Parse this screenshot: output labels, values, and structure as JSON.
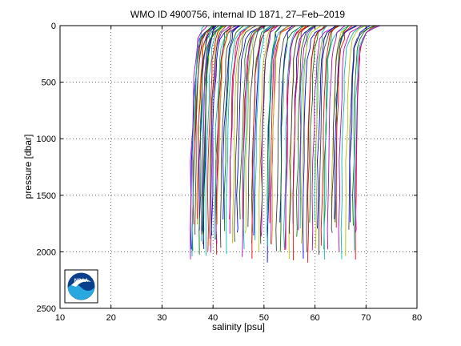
{
  "chart_data": {
    "type": "line",
    "title": "WMO ID 4900756, internal ID 1871, 27–Feb–2019",
    "xlabel": "salinity [psu]",
    "ylabel": "pressure [dbar]",
    "xlim": [
      10,
      80
    ],
    "ylim": [
      0,
      2500
    ],
    "y_reversed": true,
    "x_ticks": [
      10,
      20,
      30,
      40,
      50,
      60,
      70,
      80
    ],
    "y_ticks": [
      0,
      500,
      1000,
      1500,
      2000,
      2500
    ],
    "x_tick_labels": [
      "10",
      "20",
      "30",
      "40",
      "50",
      "60",
      "70",
      "80"
    ],
    "y_tick_labels": [
      "0",
      "500",
      "1000",
      "1500",
      "2000",
      "2500"
    ],
    "grid": true,
    "grid_style": "dotted",
    "legend": "none",
    "series_colors": [
      "#0000ff",
      "#008000",
      "#ff0000",
      "#00bfbf",
      "#bf00bf",
      "#bfbf00",
      "#404040"
    ],
    "profile_count": 96,
    "profiles_deep_salinity_range": [
      35,
      70
    ],
    "profiles_surface_salinity_range": [
      37,
      73
    ],
    "profiles_max_pressure_range": [
      1700,
      2100
    ],
    "series": [
      {
        "values": [
          [
            38.5,
            0
          ],
          [
            37.5,
            40
          ],
          [
            36.8,
            150
          ],
          [
            36.2,
            400
          ],
          [
            35.8,
            800
          ],
          [
            35.5,
            1200
          ],
          [
            35.4,
            1600
          ],
          [
            35.4,
            1750
          ]
        ]
      },
      {
        "values": [
          [
            40.5,
            0
          ],
          [
            39.5,
            50
          ],
          [
            38.6,
            200
          ],
          [
            38.1,
            600
          ],
          [
            37.8,
            1000
          ],
          [
            37.7,
            1400
          ],
          [
            37.6,
            1800
          ]
        ]
      },
      {
        "values": [
          [
            44.0,
            0
          ],
          [
            42.5,
            60
          ],
          [
            41.5,
            250
          ],
          [
            41.0,
            600
          ],
          [
            40.6,
            1000
          ],
          [
            40.4,
            1500
          ],
          [
            40.4,
            1800
          ]
        ]
      },
      {
        "values": [
          [
            48.5,
            0
          ],
          [
            47.0,
            50
          ],
          [
            46.0,
            250
          ],
          [
            45.5,
            700
          ],
          [
            45.2,
            1200
          ],
          [
            45.0,
            1600
          ],
          [
            45.0,
            1900
          ]
        ]
      },
      {
        "values": [
          [
            53.0,
            0
          ],
          [
            51.5,
            60
          ],
          [
            50.5,
            300
          ],
          [
            50.0,
            700
          ],
          [
            49.8,
            1200
          ],
          [
            49.7,
            1600
          ],
          [
            49.6,
            1850
          ]
        ]
      },
      {
        "values": [
          [
            57.5,
            0
          ],
          [
            56.0,
            50
          ],
          [
            55.0,
            250
          ],
          [
            54.6,
            700
          ],
          [
            54.3,
            1200
          ],
          [
            54.2,
            1600
          ],
          [
            54.1,
            1950
          ]
        ]
      },
      {
        "values": [
          [
            62.0,
            0
          ],
          [
            60.5,
            60
          ],
          [
            59.6,
            300
          ],
          [
            59.2,
            700
          ],
          [
            59.0,
            1200
          ],
          [
            58.9,
            1600
          ],
          [
            58.8,
            1950
          ]
        ]
      },
      {
        "values": [
          [
            66.5,
            0
          ],
          [
            65.0,
            60
          ],
          [
            64.0,
            250
          ],
          [
            63.6,
            700
          ],
          [
            63.4,
            1200
          ],
          [
            63.3,
            1600
          ],
          [
            63.2,
            1900
          ]
        ]
      },
      {
        "values": [
          [
            72.5,
            0
          ],
          [
            70.5,
            40
          ],
          [
            69.2,
            200
          ],
          [
            68.7,
            600
          ],
          [
            68.5,
            1000
          ],
          [
            68.4,
            1500
          ],
          [
            68.4,
            1800
          ]
        ]
      }
    ]
  }
}
